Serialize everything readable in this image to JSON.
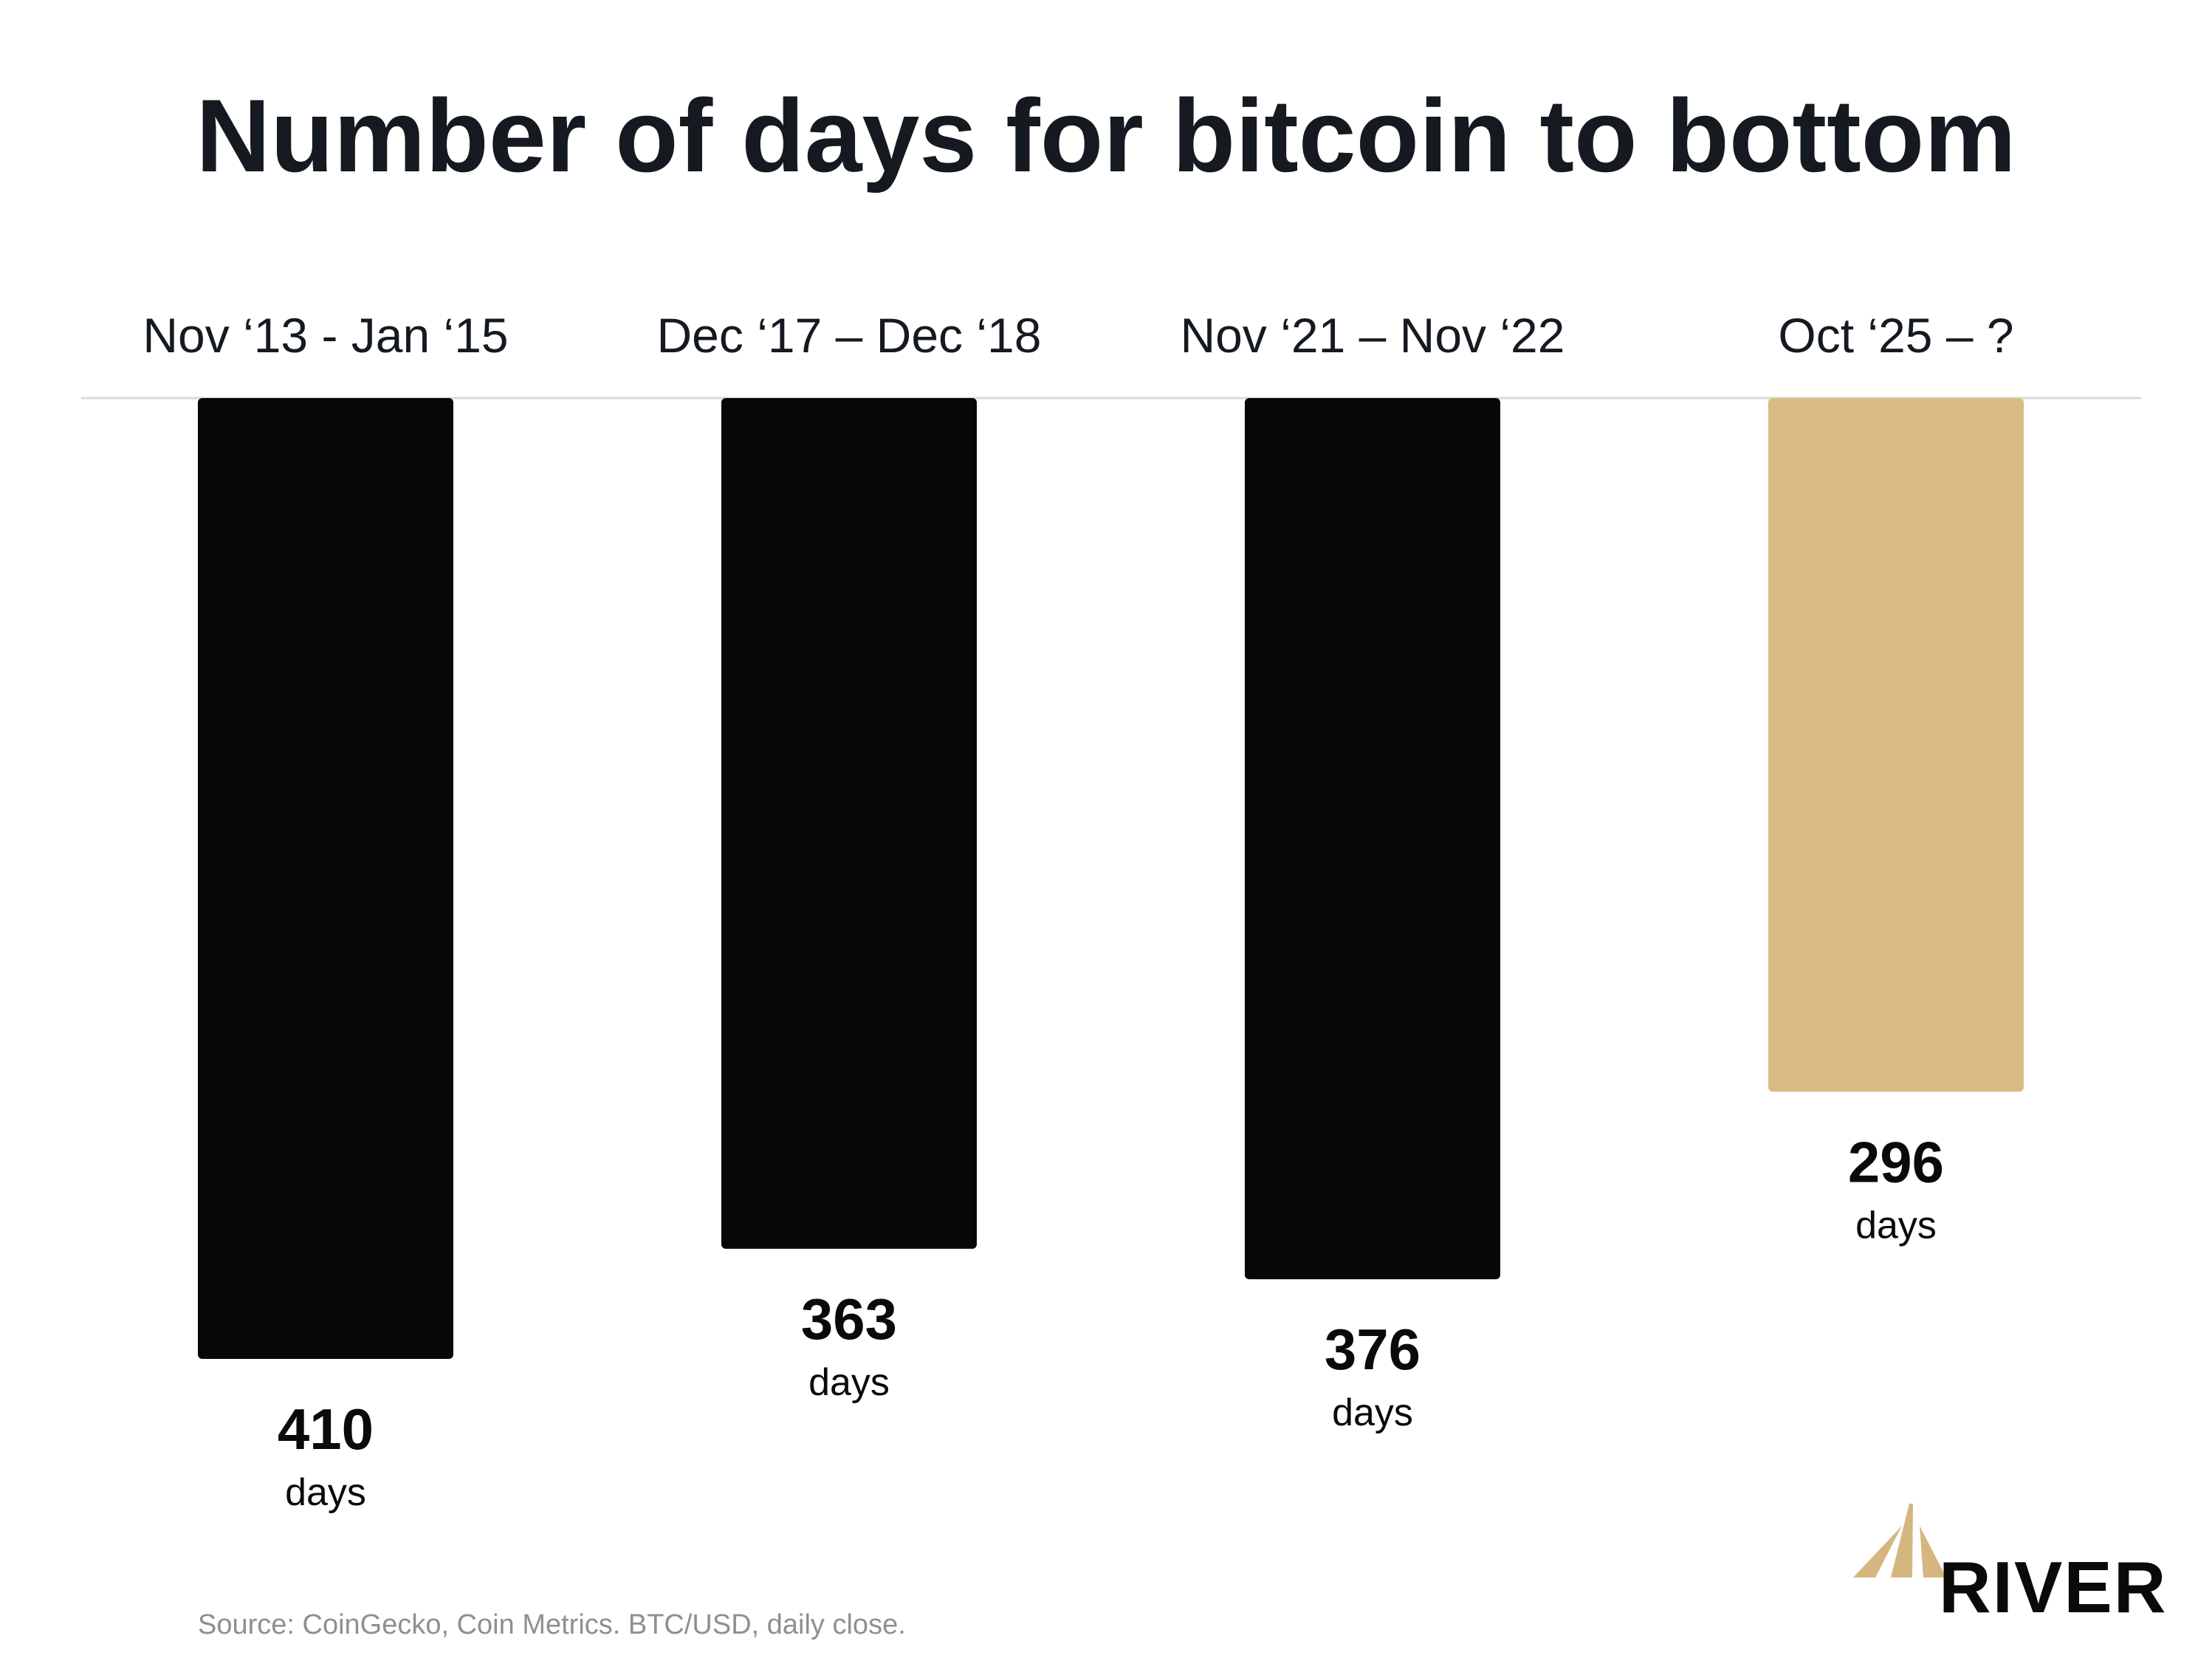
{
  "chart_data": {
    "type": "bar",
    "title": "Number of days for bitcoin to bottom",
    "categories": [
      "Nov ‘13 - Jan ‘15",
      "Dec ‘17 – Dec ‘18",
      "Nov ‘21 – Nov ‘22",
      "Oct ‘25 – ?"
    ],
    "values": [
      410,
      363,
      376,
      296
    ],
    "value_unit": "days",
    "orientation": "vertical, bars hang down from a top baseline",
    "ylim": [
      0,
      410
    ],
    "grid": false,
    "legend": "none",
    "highlight_index": 3,
    "colors": {
      "bar": "#070707",
      "highlight": "#d9bc83",
      "baseline": "#d9d9d9",
      "title": "#151a21",
      "source": "#8d8f93"
    }
  },
  "footer": {
    "source": "Source: CoinGecko, Coin Metrics. BTC/USD, daily close.",
    "brand": "RIVER",
    "brand_icon": "river-logo-icon"
  }
}
